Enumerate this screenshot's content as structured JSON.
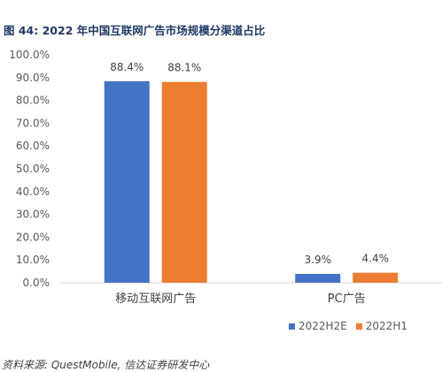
{
  "figure": {
    "title": "图 44:  2022 年中国互联网广告市场规模分渠道占比",
    "source": "资料来源: QuestMobile,  信达证券研发中心"
  },
  "chart_data": {
    "type": "bar",
    "categories": [
      "移动互联网广告",
      "PC广告"
    ],
    "series": [
      {
        "name": "2022H2E",
        "values": [
          88.4,
          3.9
        ],
        "color": "#4472c4"
      },
      {
        "name": "2022H1",
        "values": [
          88.1,
          4.4
        ],
        "color": "#ed7d31"
      }
    ],
    "value_labels": [
      [
        "88.4%",
        "3.9%"
      ],
      [
        "88.1%",
        "4.4%"
      ]
    ],
    "yticks": [
      "0.0%",
      "10.0%",
      "20.0%",
      "30.0%",
      "40.0%",
      "50.0%",
      "60.0%",
      "70.0%",
      "80.0%",
      "90.0%",
      "100.0%"
    ],
    "ylim": [
      0,
      100
    ],
    "grid": false,
    "legend_position": "bottom-right"
  }
}
